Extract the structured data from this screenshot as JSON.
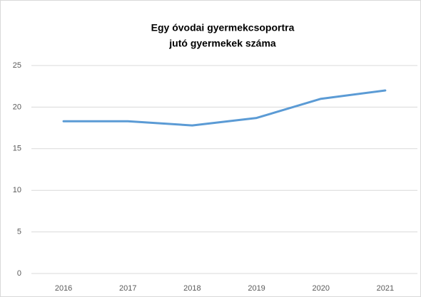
{
  "chart_data": {
    "type": "line",
    "title": [
      "Egy óvodai gyermekcsoportra",
      "jutó gyermekek száma"
    ],
    "categories": [
      "2016",
      "2017",
      "2018",
      "2019",
      "2020",
      "2021"
    ],
    "series": [
      {
        "name": "Egy óvodai gyermekcsoportra jutó gyermekek száma",
        "color": "#5b9bd5",
        "values": [
          18.3,
          18.3,
          17.8,
          18.7,
          21.0,
          22.0
        ]
      }
    ],
    "ylim": [
      0,
      25
    ],
    "yticks": [
      0,
      5,
      10,
      15,
      20,
      25
    ],
    "grid": true,
    "legend": false
  }
}
